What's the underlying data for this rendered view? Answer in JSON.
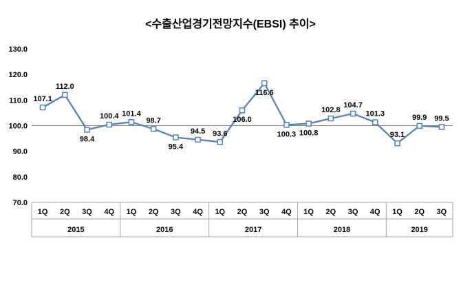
{
  "chart_data": {
    "type": "line",
    "title": "<수출산업경기전망지수(EBSI) 추이>",
    "xlabel": "",
    "ylabel": "",
    "ylim": [
      70,
      130
    ],
    "ytick_labels": [
      "70.0",
      "80.0",
      "90.0",
      "100.0",
      "110.0",
      "120.0",
      "130.0"
    ],
    "reference_line": 100,
    "grid": "single horizontal reference line at 100",
    "legend_position": "none",
    "x_labels": [
      "1Q",
      "2Q",
      "3Q",
      "4Q",
      "1Q",
      "2Q",
      "3Q",
      "4Q",
      "1Q",
      "2Q",
      "3Q",
      "4Q",
      "1Q",
      "2Q",
      "3Q",
      "4Q",
      "1Q",
      "2Q",
      "3Q"
    ],
    "year_groups": [
      {
        "label": "2015",
        "count": 4
      },
      {
        "label": "2016",
        "count": 4
      },
      {
        "label": "2017",
        "count": 4
      },
      {
        "label": "2018",
        "count": 4
      },
      {
        "label": "2019",
        "count": 3
      }
    ],
    "series": [
      {
        "name": "EBSI",
        "values": [
          107.1,
          112.0,
          98.4,
          100.4,
          101.4,
          98.7,
          95.4,
          94.5,
          93.6,
          106.0,
          116.6,
          100.3,
          100.8,
          102.8,
          104.7,
          101.3,
          93.1,
          99.9,
          99.5
        ]
      }
    ],
    "data_label_side": [
      "above",
      "above",
      "below",
      "above",
      "above",
      "above",
      "below",
      "above",
      "above",
      "below",
      "below",
      "below",
      "below",
      "above",
      "above",
      "above",
      "above",
      "above",
      "above"
    ],
    "colors": {
      "line": "#4f81bd",
      "marker_fill": "#ffffff",
      "marker_stroke": "#4f81bd",
      "reference_line": "#808080",
      "axis_line": "#a6a6a6",
      "text": "#000000"
    }
  }
}
